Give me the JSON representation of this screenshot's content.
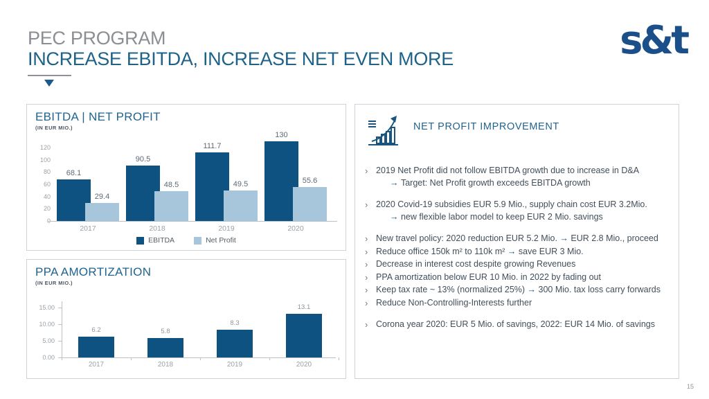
{
  "header": {
    "kicker": "PEC PROGRAM",
    "title": "INCREASE EBITDA, INCREASE NET EVEN MORE",
    "logo": "s&t"
  },
  "colors": {
    "brand_navy": "#1b4f8a",
    "title_blue": "#1e6288",
    "panel_title_blue": "#20648f",
    "bar_dark_blue": "#0d5280",
    "bar_light_blue": "#a7c5db",
    "arrow_blue": "#105480",
    "gray_text": "#9aa1a8",
    "body_text": "#414e59",
    "panel_border": "#ccd3da"
  },
  "chart_data": [
    {
      "type": "bar",
      "title": "EBITDA | NET PROFIT",
      "subtitle": "(IN EUR MIO.)",
      "categories": [
        "2017",
        "2018",
        "2019",
        "2020"
      ],
      "series": [
        {
          "name": "EBITDA",
          "color": "#0d5280",
          "values": [
            68.1,
            90.5,
            111.7,
            130
          ],
          "labels": [
            "68.1",
            "90.5",
            "111.7",
            "130"
          ]
        },
        {
          "name": "Net Profit",
          "color": "#a7c5db",
          "values": [
            29.4,
            48.5,
            49.5,
            55.6
          ],
          "labels": [
            "29.4",
            "48.5",
            "49.5",
            "55.6"
          ]
        }
      ],
      "ylim": [
        0,
        140
      ],
      "yticks": [
        {
          "v": 0,
          "label": "0"
        },
        {
          "v": 20,
          "label": "20"
        },
        {
          "v": 40,
          "label": "40"
        },
        {
          "v": 60,
          "label": "60"
        },
        {
          "v": 80,
          "label": "80"
        },
        {
          "v": 100,
          "label": "100"
        },
        {
          "v": 120,
          "label": "120"
        }
      ],
      "legend_position": "bottom",
      "grid": false
    },
    {
      "type": "bar",
      "title": "PPA AMORTIZATION",
      "subtitle": "(IN EUR MIO.)",
      "categories": [
        "2017",
        "2018",
        "2019",
        "2020"
      ],
      "series": [
        {
          "name": "PPA Amortization",
          "color": "#0d5280",
          "values": [
            6.2,
            5.8,
            8.3,
            13.1
          ],
          "labels": [
            "6.2",
            "5.8",
            "8.3",
            "13.1"
          ]
        }
      ],
      "ylim": [
        0,
        16
      ],
      "yticks": [
        {
          "v": 0,
          "label": "0.00"
        },
        {
          "v": 5,
          "label": "5.00"
        },
        {
          "v": 10,
          "label": "10.00"
        },
        {
          "v": 15,
          "label": "15.00"
        }
      ],
      "legend_position": "none",
      "grid": false
    }
  ],
  "right_panel": {
    "icon": "growth-chart-icon",
    "title": "NET PROFIT IMPROVEMENT",
    "marker": "›",
    "arrow": "→",
    "bullets": [
      {
        "text": "2019 Net Profit did not follow EBITDA growth due to increase in D&A",
        "sub": "Target: Net Profit growth exceeds EBITDA growth",
        "gap": false
      },
      {
        "text": "2020 Covid-19 subsidies EUR 5.9 Mio., supply chain cost EUR 3.2Mio.",
        "sub": "new flexible labor model to keep EUR 2 Mio. savings",
        "gap": true
      },
      {
        "text": "New travel policy: 2020 reduction EUR 5.2 Mio. → EUR 2.8 Mio., proceed",
        "gap": true
      },
      {
        "text": "Reduce office 150k m² to 110k m² → save EUR 3 Mio.",
        "gap": false
      },
      {
        "text": "Decrease in interest cost despite growing Revenues",
        "gap": false
      },
      {
        "text": "PPA amortization below EUR 10 Mio. in 2022 by fading out",
        "gap": false
      },
      {
        "text": "Keep tax rate ~ 13% (normalized 25%) → 300 Mio. tax loss carry forwards",
        "gap": false
      },
      {
        "text": "Reduce Non-Controlling-Interests further",
        "gap": false
      },
      {
        "text": "Corona year 2020: EUR 5 Mio. of savings, 2022: EUR 14 Mio. of savings",
        "gap": true
      }
    ]
  },
  "footer": {
    "page_number": "15"
  }
}
